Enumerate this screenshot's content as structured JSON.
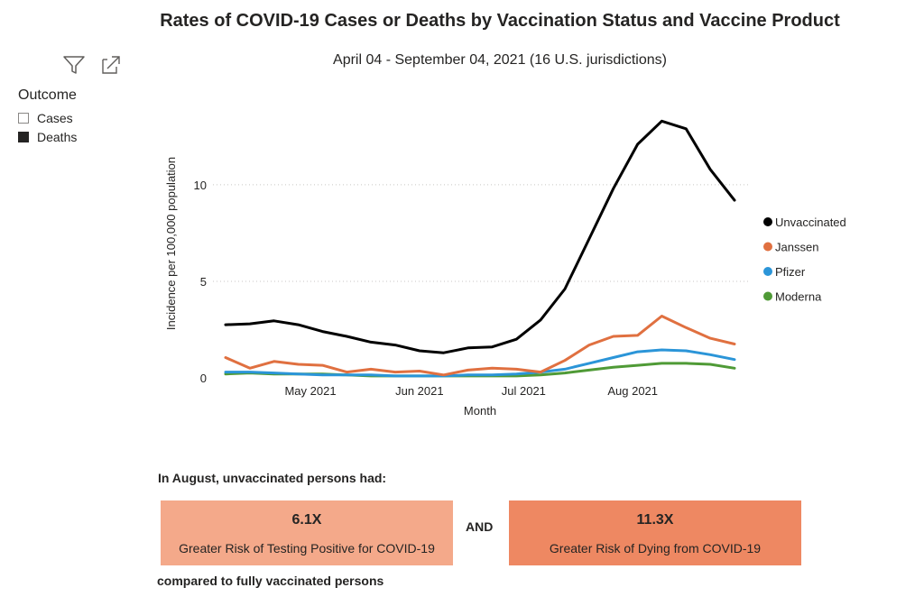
{
  "header": {
    "title": "Rates of COVID-19 Cases or Deaths by Vaccination Status and Vaccine Product",
    "subtitle": "April 04 - September 04, 2021 (16 U.S. jurisdictions)"
  },
  "toolbar": {
    "filter_icon": "filter-icon",
    "focus_icon": "focus-mode-icon"
  },
  "outcome_slicer": {
    "title": "Outcome",
    "items": [
      {
        "label": "Cases",
        "checked": false
      },
      {
        "label": "Deaths",
        "checked": true
      }
    ]
  },
  "colors": {
    "Unvaccinated": "#000000",
    "Janssen": "#e07040",
    "Pfizer": "#2b95d8",
    "Moderna": "#4f9a36",
    "card_cases": "#f4a98a",
    "card_deaths": "#ee8862"
  },
  "chart_data": {
    "type": "line",
    "title": "Rates of COVID-19 Cases or Deaths by Vaccination Status and Vaccine Product",
    "subtitle": "April 04 - September 04, 2021 (16 U.S. jurisdictions)",
    "xlabel": "Month",
    "ylabel": "Incidence per 100,000 population",
    "x_ticks": [
      {
        "label": "May 2021",
        "week": 3.5
      },
      {
        "label": "Jun 2021",
        "week": 8
      },
      {
        "label": "Jul 2021",
        "week": 12.3
      },
      {
        "label": "Aug 2021",
        "week": 16.8
      }
    ],
    "ylim": [
      0,
      13.5
    ],
    "y_ticks": [
      0,
      5,
      10
    ],
    "grid": true,
    "legend_position": "right",
    "weeks": [
      0,
      1,
      2,
      3,
      4,
      5,
      6,
      7,
      8,
      9,
      10,
      11,
      12,
      13,
      14,
      15,
      16,
      17,
      18,
      19,
      20,
      21
    ],
    "series": [
      {
        "name": "Unvaccinated",
        "values": [
          2.75,
          2.8,
          2.95,
          2.75,
          2.4,
          2.15,
          1.85,
          1.7,
          1.4,
          1.3,
          1.55,
          1.6,
          2.0,
          3.0,
          4.6,
          7.2,
          9.8,
          12.1,
          13.3,
          12.9,
          10.8,
          9.2
        ]
      },
      {
        "name": "Janssen",
        "values": [
          1.05,
          0.5,
          0.85,
          0.7,
          0.65,
          0.3,
          0.45,
          0.3,
          0.35,
          0.15,
          0.4,
          0.5,
          0.45,
          0.3,
          0.9,
          1.7,
          2.15,
          2.2,
          3.2,
          2.6,
          2.05,
          1.75
        ]
      },
      {
        "name": "Pfizer",
        "values": [
          0.3,
          0.3,
          0.25,
          0.2,
          0.15,
          0.15,
          0.15,
          0.1,
          0.1,
          0.1,
          0.15,
          0.15,
          0.2,
          0.3,
          0.45,
          0.75,
          1.05,
          1.35,
          1.45,
          1.4,
          1.2,
          0.95
        ]
      },
      {
        "name": "Moderna",
        "values": [
          0.2,
          0.25,
          0.2,
          0.2,
          0.2,
          0.15,
          0.1,
          0.1,
          0.1,
          0.1,
          0.1,
          0.1,
          0.1,
          0.15,
          0.25,
          0.4,
          0.55,
          0.65,
          0.75,
          0.75,
          0.7,
          0.5
        ]
      }
    ]
  },
  "summary": {
    "heading": "In August, unvaccinated persons had:",
    "cards": [
      {
        "value": "6.1X",
        "description": "Greater Risk of Testing Positive for COVID-19"
      },
      {
        "value": "11.3X",
        "description": "Greater Risk of Dying from COVID-19"
      }
    ],
    "connector": "AND",
    "footer": "compared to fully vaccinated persons"
  }
}
